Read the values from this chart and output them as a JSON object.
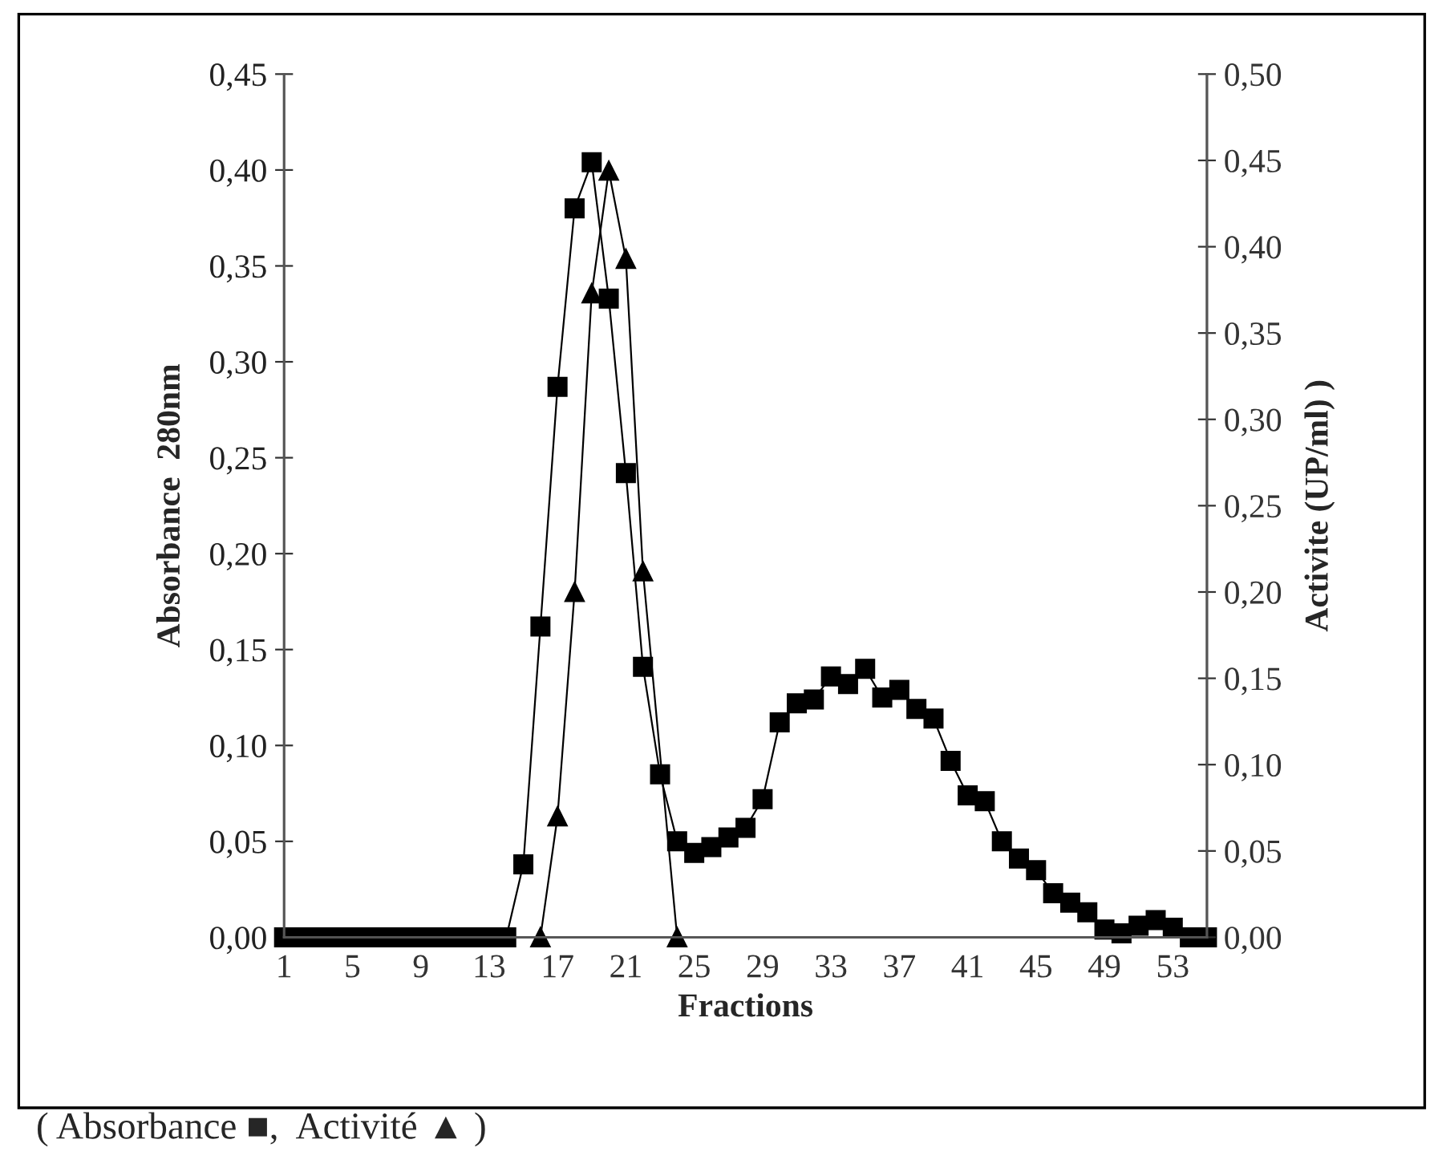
{
  "chart_data": {
    "type": "line",
    "xlabel": "Fractions",
    "ylabel": "Absorbance  280nm",
    "y2label": "Activite (UP/ml) )",
    "categories": [
      "1",
      null,
      null,
      null,
      "5",
      null,
      null,
      null,
      "9",
      null,
      null,
      null,
      "13",
      null,
      null,
      null,
      "17",
      null,
      null,
      null,
      "21",
      null,
      null,
      null,
      "25",
      null,
      null,
      null,
      "29",
      null,
      null,
      null,
      "33",
      null,
      null,
      null,
      "37",
      null,
      null,
      null,
      "41",
      null,
      null,
      null,
      "45",
      null,
      null,
      null,
      "49",
      null,
      null,
      null,
      "53",
      null,
      null
    ],
    "series": [
      {
        "color": "#000000",
        "marker": "square",
        "values": [
          0,
          0,
          0,
          0,
          0,
          0,
          0,
          0,
          0,
          0,
          0,
          0,
          0,
          0,
          0.038,
          0.162,
          0.287,
          0.38,
          0.404,
          0.333,
          0.242,
          0.141,
          0.085,
          0.05,
          0.044,
          0.047,
          0.052,
          0.057,
          0.072,
          0.112,
          0.122,
          0.124,
          0.136,
          0.132,
          0.14,
          0.125,
          0.129,
          0.119,
          0.114,
          0.092,
          0.074,
          0.071,
          0.05,
          0.041,
          0.035,
          0.023,
          0.018,
          0.013,
          0.004,
          0.002,
          0.006,
          0.009,
          0.005,
          0,
          0
        ]
      },
      {
        "color": "#000000",
        "marker": "triangle",
        "axis": "y2",
        "values": [
          null,
          null,
          null,
          null,
          null,
          null,
          null,
          null,
          null,
          null,
          null,
          null,
          null,
          null,
          null,
          0,
          0.07,
          0.2,
          0.373,
          0.444,
          0.393,
          0.212,
          null,
          0,
          null,
          null,
          null,
          null,
          null,
          null,
          null,
          null,
          null,
          null,
          null,
          null,
          null,
          null,
          null,
          null,
          null,
          null,
          null,
          null,
          null,
          null,
          null,
          null,
          null,
          null,
          null,
          null,
          null,
          null,
          null
        ]
      }
    ],
    "ylim": [
      0,
      0.45
    ],
    "yticks": [
      {
        "value": 0,
        "label": "0,00"
      },
      {
        "value": 0.05,
        "label": "0,05"
      },
      {
        "value": 0.1,
        "label": "0,10"
      },
      {
        "value": 0.15,
        "label": "0,15"
      },
      {
        "value": 0.2,
        "label": "0,20"
      },
      {
        "value": 0.25,
        "label": "0,25"
      },
      {
        "value": 0.3,
        "label": "0,30"
      },
      {
        "value": 0.35,
        "label": "0,35"
      },
      {
        "value": 0.4,
        "label": "0,40"
      },
      {
        "value": 0.45,
        "label": "0,45"
      }
    ],
    "y2lim": [
      0,
      0.5
    ],
    "y2ticks": [
      {
        "value": 0,
        "label": "0,00"
      },
      {
        "value": 0.05,
        "label": "0,05"
      },
      {
        "value": 0.1,
        "label": "0,10"
      },
      {
        "value": 0.15,
        "label": "0,15"
      },
      {
        "value": 0.2,
        "label": "0,20"
      },
      {
        "value": 0.25,
        "label": "0,25"
      },
      {
        "value": 0.3,
        "label": "0,30"
      },
      {
        "value": 0.35,
        "label": "0,35"
      },
      {
        "value": 0.4,
        "label": "0,40"
      },
      {
        "value": 0.45,
        "label": "0,45"
      },
      {
        "value": 0.5,
        "label": "0,50"
      }
    ],
    "annotations": [
      "( Absorbance ■,  Activité ▲ )"
    ]
  }
}
